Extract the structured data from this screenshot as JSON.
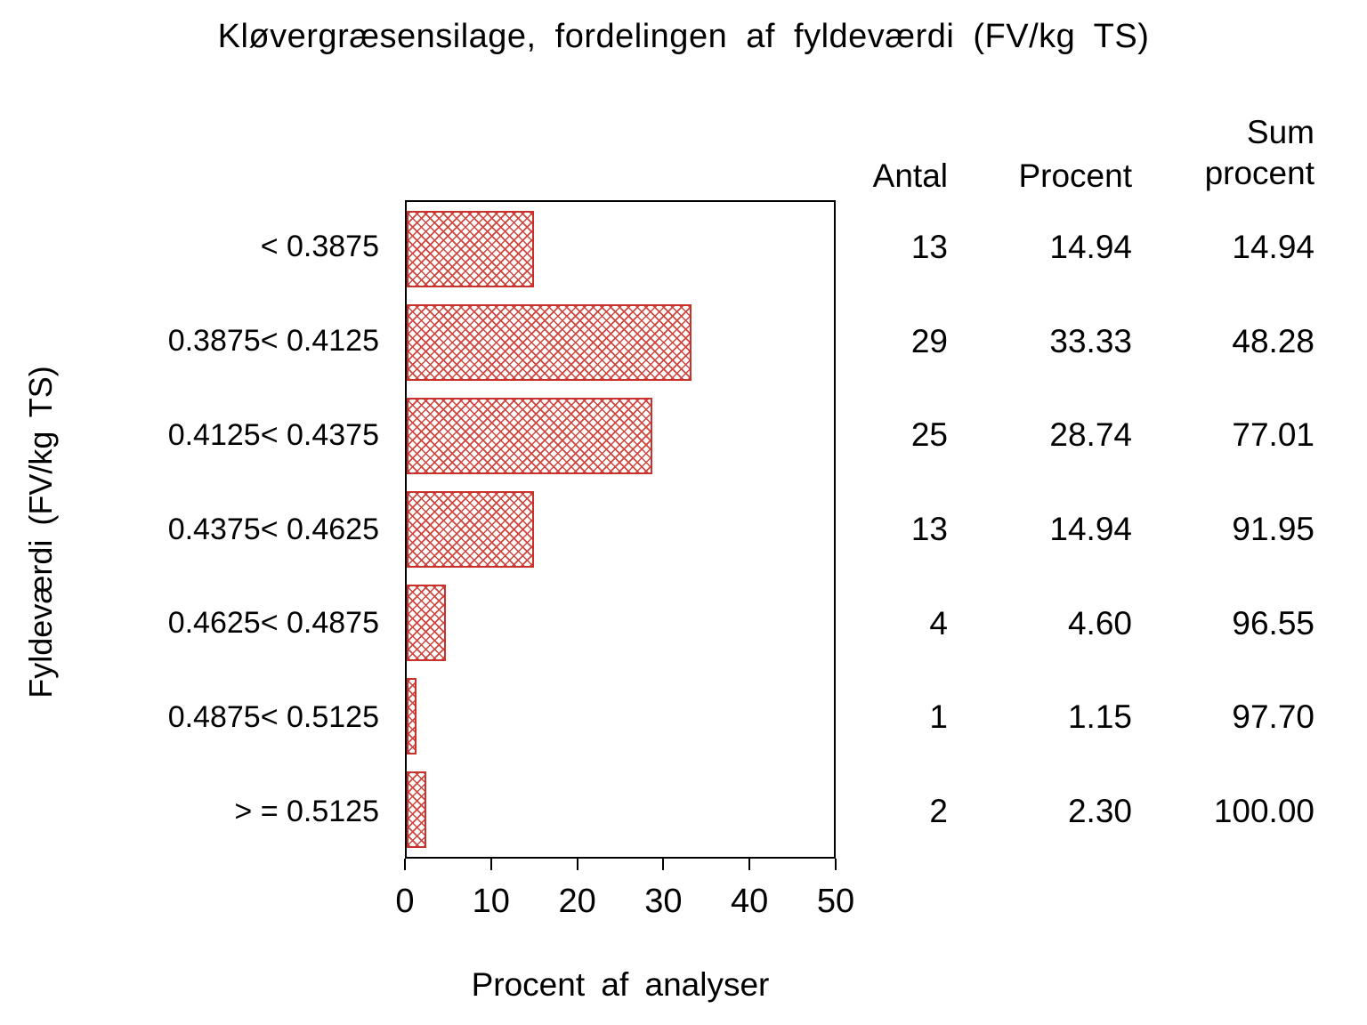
{
  "title": "Kløvergræsensilage, fordelingen af fyldeværdi (FV/kg TS)",
  "chart_data": {
    "type": "bar",
    "orientation": "horizontal",
    "title": "Kløvergræsensilage, fordelingen af fyldeværdi (FV/kg TS)",
    "categories": [
      "< 0.3875",
      "0.3875< 0.4125",
      "0.4125< 0.4375",
      "0.4375< 0.4625",
      "0.4625< 0.4875",
      "0.4875< 0.5125",
      "> = 0.5125"
    ],
    "values": [
      14.94,
      33.33,
      28.74,
      14.94,
      4.6,
      1.15,
      2.3
    ],
    "xlabel": "Procent af analyser",
    "ylabel": "Fyldeværdi (FV/kg TS)",
    "xlim": [
      0,
      50
    ],
    "xticks": [
      0,
      10,
      20,
      30,
      40,
      50
    ],
    "grid": "off",
    "bar_fill_pattern": "crosshatch",
    "bar_color": "#c8322b"
  },
  "table": {
    "header_antal": "Antal",
    "header_procent": "Procent",
    "header_sum_line1": "Sum",
    "header_sum_line2": "procent",
    "rows": [
      {
        "antal": "13",
        "procent": "14.94",
        "sum": "14.94"
      },
      {
        "antal": "29",
        "procent": "33.33",
        "sum": "48.28"
      },
      {
        "antal": "25",
        "procent": "28.74",
        "sum": "77.01"
      },
      {
        "antal": "13",
        "procent": "14.94",
        "sum": "91.95"
      },
      {
        "antal": "4",
        "procent": "4.60",
        "sum": "96.55"
      },
      {
        "antal": "1",
        "procent": "1.15",
        "sum": "97.70"
      },
      {
        "antal": "2",
        "procent": "2.30",
        "sum": "100.00"
      }
    ]
  }
}
